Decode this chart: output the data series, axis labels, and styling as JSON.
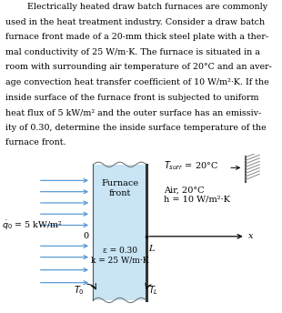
{
  "fig_width": 3.1,
  "fig_height": 3.44,
  "dpi": 100,
  "text_lines": [
    "        Electrically heated draw batch furnaces are commonly",
    "used in the heat treatment industry. Consider a draw batch",
    "furnace front made of a 20-mm thick steel plate with a ther-",
    "mal conductivity of 25 W/m·K. The furnace is situated in a",
    "room with surrounding air temperature of 20°C and an aver-",
    "age convection heat transfer coefficient of 10 W/m²·K. If the",
    "inside surface of the furnace front is subjected to uniform",
    "heat flux of 5 kW/m² and the outer surface has an emissiv-",
    "ity of 0.30, determine the inside surface temperature of the",
    "furnace front."
  ],
  "text_fontsize": 6.8,
  "furnace_color": "#c8e4f5",
  "furnace_label": "Furnace\nfront",
  "epsilon_label": "ε = 0.30",
  "k_label": "k = 25 W/m·K",
  "q_label": "̇q₀ = 5 kW/m²",
  "T_surr_label": "T_surr = 20°C",
  "air_label1": "Air, 20°C",
  "air_label2": "h = 10 W/m²·K",
  "T0_label": "T₀",
  "TL_label": "T_L",
  "L_label": "L",
  "x_label": "x",
  "arrow_color": "#5b9bd5",
  "bg_color": "white"
}
